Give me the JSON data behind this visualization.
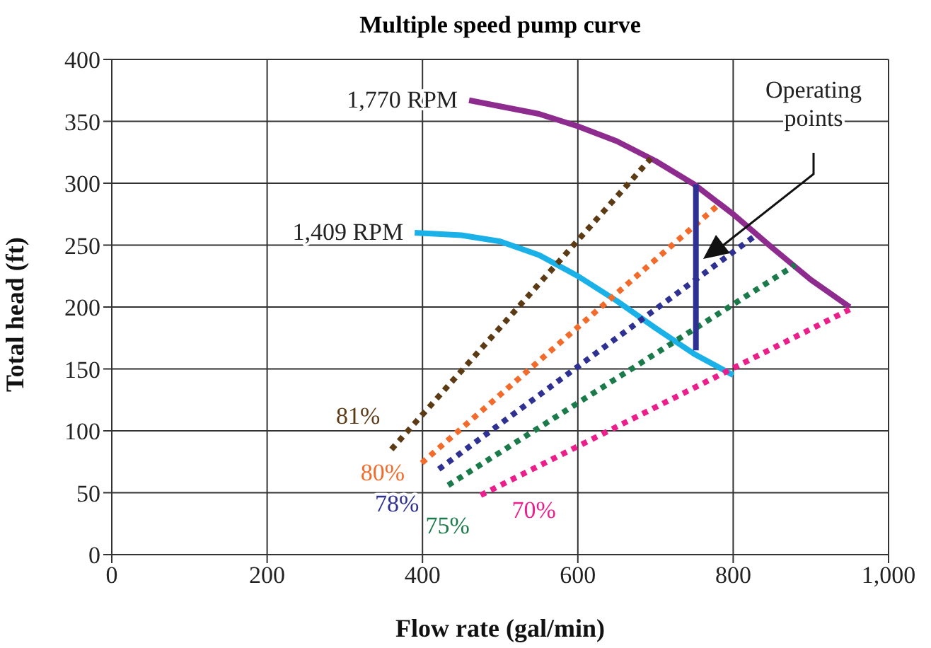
{
  "chart_data": {
    "type": "line",
    "title": "Multiple speed pump curve",
    "xlabel": "Flow rate (gal/min)",
    "ylabel": "Total head (ft)",
    "xlim": [
      0,
      1000
    ],
    "xticks": [
      0,
      200,
      400,
      600,
      800,
      {
        "value": 1000,
        "label": "1,000"
      }
    ],
    "ylim": [
      0,
      400
    ],
    "yticks": [
      0,
      50,
      100,
      150,
      200,
      250,
      300,
      350,
      400
    ],
    "grid": true,
    "marker": "none",
    "series": [
      {
        "name": "1,770 RPM",
        "color": "#8e2b8e",
        "line_style": "solid",
        "x": [
          460,
          550,
          600,
          650,
          700,
          750,
          800,
          850,
          900,
          950
        ],
        "values": [
          367,
          356,
          346,
          334,
          318,
          299,
          275,
          248,
          222,
          200
        ]
      },
      {
        "name": "1,409 RPM",
        "color": "#1ab0e8",
        "line_style": "solid",
        "x": [
          390,
          450,
          500,
          550,
          600,
          650,
          700,
          750,
          800
        ],
        "values": [
          260,
          258,
          253,
          242,
          225,
          205,
          183,
          162,
          145
        ]
      },
      {
        "name": "81%",
        "color": "#5c3a14",
        "line_style": "dotted",
        "x": [
          360,
          694
        ],
        "values": [
          85,
          320
        ]
      },
      {
        "name": "80%",
        "color": "#f26b2b",
        "line_style": "dotted",
        "x": [
          399,
          780
        ],
        "values": [
          74,
          282
        ]
      },
      {
        "name": "78%",
        "color": "#2e3192",
        "line_style": "dotted",
        "x": [
          421,
          827
        ],
        "values": [
          69,
          257
        ]
      },
      {
        "name": "75%",
        "color": "#1a7a4a",
        "line_style": "dotted",
        "x": [
          433,
          880
        ],
        "values": [
          56,
          234
        ]
      },
      {
        "name": "70%",
        "color": "#ec1e8c",
        "line_style": "dotted",
        "x": [
          475,
          950
        ],
        "values": [
          48,
          198
        ]
      },
      {
        "color": "#2e3192",
        "line_style": "solid",
        "x": [
          752,
          752
        ],
        "values": [
          299,
          165
        ]
      }
    ],
    "annotations": [
      "Operating points"
    ]
  }
}
